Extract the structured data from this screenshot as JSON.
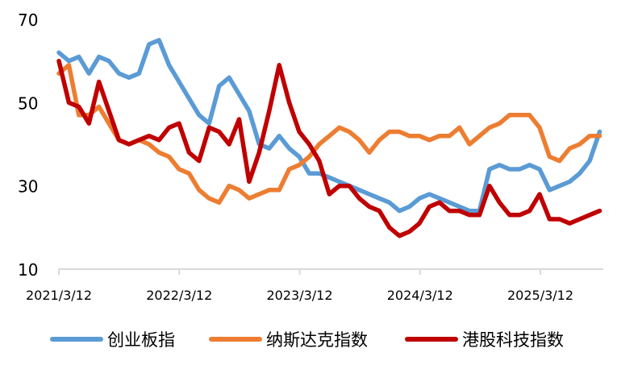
{
  "chart_data": {
    "type": "line",
    "title": "",
    "xlabel": "",
    "ylabel": "",
    "ylim": [
      10,
      70
    ],
    "yticks": [
      10,
      30,
      50,
      70
    ],
    "xticks": [
      "2021/3/12",
      "2022/3/12",
      "2023/3/12",
      "2024/3/12",
      "2025/3/12"
    ],
    "grid": false,
    "legend_position": "bottom",
    "x": [
      "2021-03",
      "2021-04",
      "2021-05",
      "2021-06",
      "2021-07",
      "2021-08",
      "2021-09",
      "2021-10",
      "2021-11",
      "2021-12",
      "2022-01",
      "2022-02",
      "2022-03",
      "2022-04",
      "2022-05",
      "2022-06",
      "2022-07",
      "2022-08",
      "2022-09",
      "2022-10",
      "2022-11",
      "2022-12",
      "2023-01",
      "2023-02",
      "2023-03",
      "2023-04",
      "2023-05",
      "2023-06",
      "2023-07",
      "2023-08",
      "2023-09",
      "2023-10",
      "2023-11",
      "2023-12",
      "2024-01",
      "2024-02",
      "2024-03",
      "2024-04",
      "2024-05",
      "2024-06",
      "2024-07",
      "2024-08",
      "2024-09",
      "2024-10",
      "2024-11",
      "2024-12",
      "2025-01",
      "2025-02",
      "2025-03",
      "2025-04",
      "2025-05",
      "2025-06",
      "2025-07",
      "2025-08",
      "2025-09"
    ],
    "series": [
      {
        "name": "创业板指",
        "color": "#5B9BD5",
        "values": [
          62,
          60,
          61,
          57,
          61,
          60,
          57,
          56,
          57,
          64,
          65,
          59,
          55,
          51,
          47,
          45,
          54,
          56,
          52,
          48,
          40,
          39,
          42,
          39,
          37,
          33,
          33,
          32,
          31,
          30,
          29,
          28,
          27,
          26,
          24,
          25,
          27,
          28,
          27,
          26,
          25,
          24,
          24,
          34,
          35,
          34,
          34,
          35,
          34,
          29,
          30,
          31,
          33,
          36,
          43
        ]
      },
      {
        "name": "纳斯达克指数",
        "color": "#ED7D31",
        "values": [
          57,
          59,
          47,
          47,
          49,
          45,
          41,
          40,
          41,
          40,
          38,
          37,
          34,
          33,
          29,
          27,
          26,
          30,
          29,
          27,
          28,
          29,
          29,
          34,
          35,
          37,
          40,
          42,
          44,
          43,
          41,
          38,
          41,
          43,
          43,
          42,
          42,
          41,
          42,
          42,
          44,
          40,
          42,
          44,
          45,
          47,
          47,
          47,
          44,
          37,
          36,
          39,
          40,
          42,
          42
        ]
      },
      {
        "name": "港股科技指数",
        "color": "#C00000",
        "values": [
          60,
          50,
          49,
          45,
          55,
          48,
          41,
          40,
          41,
          42,
          41,
          44,
          45,
          38,
          36,
          44,
          43,
          40,
          46,
          31,
          38,
          48,
          59,
          50,
          43,
          40,
          36,
          28,
          30,
          30,
          27,
          25,
          24,
          20,
          18,
          19,
          21,
          25,
          26,
          24,
          24,
          23,
          23,
          30,
          26,
          23,
          23,
          24,
          28,
          22,
          22,
          21,
          22,
          23,
          24
        ]
      }
    ]
  }
}
